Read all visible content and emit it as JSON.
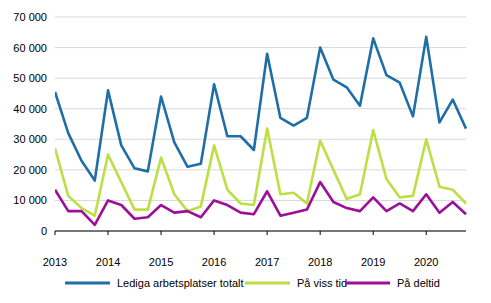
{
  "chart_data": {
    "type": "line",
    "x": [
      2013,
      2013.25,
      2013.5,
      2013.75,
      2014,
      2014.25,
      2014.5,
      2014.75,
      2015,
      2015.25,
      2015.5,
      2015.75,
      2016,
      2016.25,
      2016.5,
      2016.75,
      2017,
      2017.25,
      2017.5,
      2017.75,
      2018,
      2018.25,
      2018.5,
      2018.75,
      2019,
      2019.25,
      2019.5,
      2019.75,
      2020,
      2020.25,
      2020.5,
      2020.75
    ],
    "series": [
      {
        "name": "Lediga arbetsplatser totalt",
        "color": "#1f6ea6",
        "values": [
          45500,
          32000,
          23000,
          16500,
          46000,
          28000,
          20500,
          19500,
          44000,
          29000,
          21000,
          22000,
          48000,
          31000,
          31000,
          26500,
          58000,
          37000,
          34500,
          37000,
          60000,
          49500,
          47000,
          41000,
          63000,
          51000,
          48500,
          37500,
          63500,
          35500,
          43000,
          33500
        ]
      },
      {
        "name": "På viss tid",
        "color": "#bddf46",
        "values": [
          27000,
          11500,
          7500,
          5000,
          25000,
          16000,
          7000,
          7000,
          24000,
          12000,
          6500,
          8000,
          28000,
          13500,
          9000,
          8500,
          33500,
          12000,
          12500,
          9000,
          29500,
          20000,
          10500,
          12000,
          33000,
          17000,
          11000,
          11500,
          30000,
          14500,
          13500,
          9000
        ]
      },
      {
        "name": "På deltid",
        "color": "#9c0f96",
        "values": [
          13500,
          6500,
          6500,
          2000,
          10000,
          8500,
          4000,
          4500,
          8500,
          6000,
          6500,
          4500,
          10000,
          8500,
          6000,
          5500,
          13000,
          5000,
          6000,
          7000,
          16000,
          9500,
          7500,
          6500,
          11000,
          6500,
          9000,
          6500,
          12000,
          6000,
          9500,
          5500
        ]
      }
    ],
    "xlim": [
      2013,
      2020.75
    ],
    "xticks": [
      2013,
      2014,
      2015,
      2016,
      2017,
      2018,
      2019,
      2020
    ],
    "ylim": [
      0,
      70000
    ],
    "yticks": [
      0,
      {
        "value": 10000,
        "label": "10 000"
      },
      {
        "value": 20000,
        "label": "20 000"
      },
      {
        "value": 30000,
        "label": "30 000"
      },
      {
        "value": 40000,
        "label": "40 000"
      },
      {
        "value": 50000,
        "label": "50 000"
      },
      {
        "value": 60000,
        "label": "60 000"
      },
      {
        "value": 70000,
        "label": "70 000"
      }
    ],
    "grid": true,
    "legend": "bottom"
  }
}
